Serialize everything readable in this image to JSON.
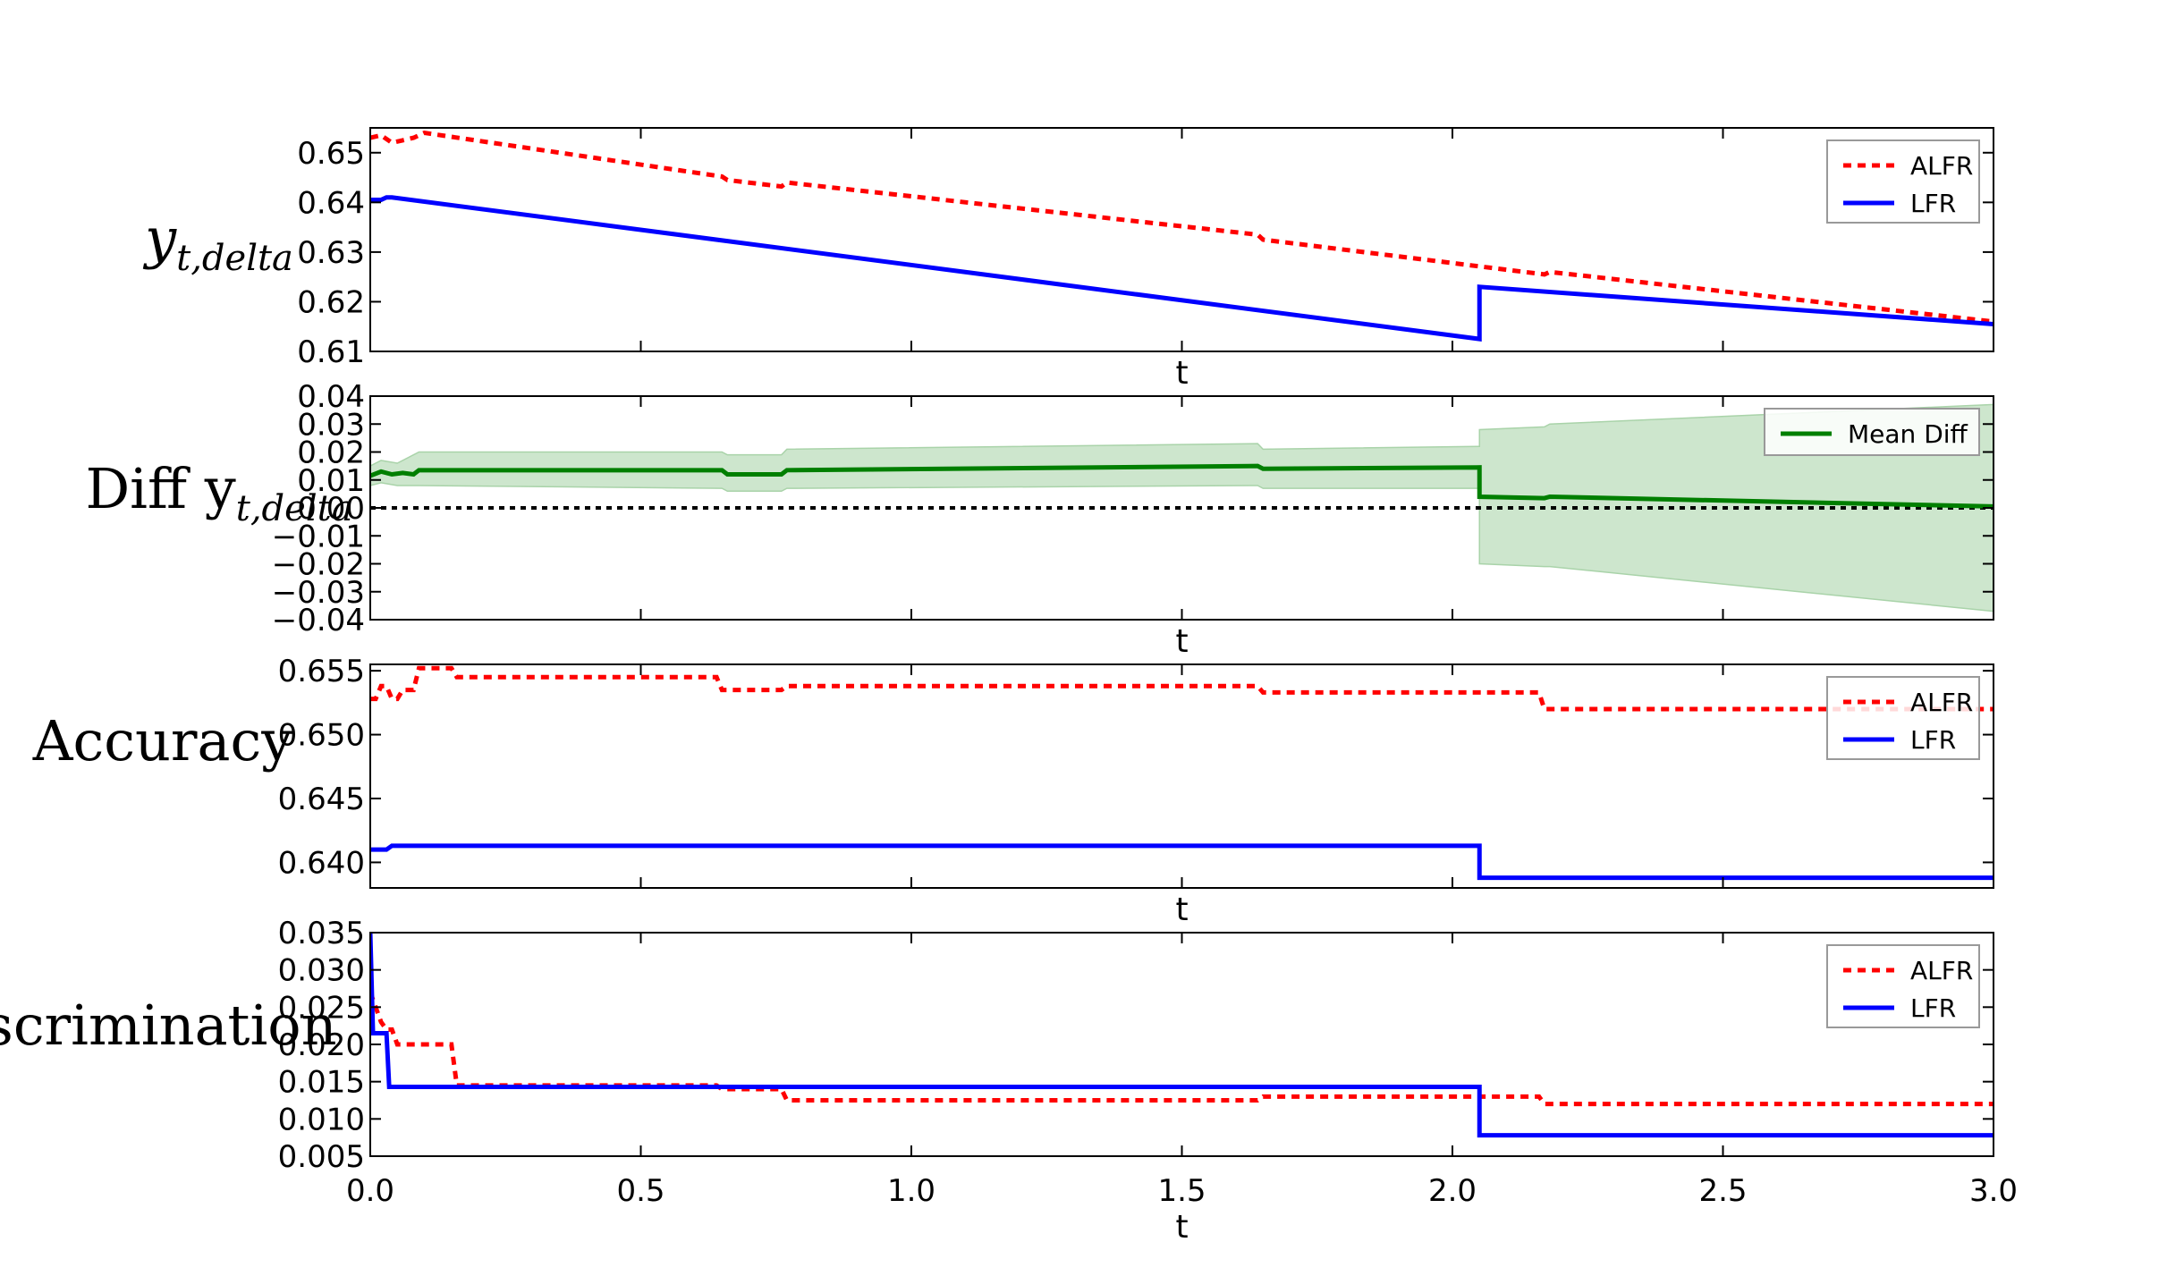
{
  "chart_data": [
    {
      "type": "line",
      "ylabel": "y",
      "ylabel_sub": "t,delta",
      "xlabel": "t",
      "xlim": [
        0,
        3
      ],
      "ylim": [
        0.61,
        0.655
      ],
      "yticks": [
        0.61,
        0.62,
        0.63,
        0.64,
        0.65
      ],
      "ytick_labels": [
        "0.61",
        "0.62",
        "0.63",
        "0.64",
        "0.65"
      ],
      "xticks": [
        0,
        0.5,
        1.0,
        1.5,
        2.0,
        2.5,
        3.0
      ],
      "legend_position": "top-right",
      "series": [
        {
          "name": "ALFR",
          "color": "#ff0000",
          "style": "dotted",
          "x": [
            0,
            0.02,
            0.04,
            0.06,
            0.08,
            0.1,
            0.65,
            0.66,
            0.76,
            0.77,
            1.64,
            1.65,
            2.17,
            2.18,
            3.0
          ],
          "y": [
            0.653,
            0.6535,
            0.652,
            0.6525,
            0.653,
            0.654,
            0.6452,
            0.6445,
            0.6432,
            0.644,
            0.6335,
            0.6325,
            0.6255,
            0.626,
            0.616
          ]
        },
        {
          "name": "LFR",
          "color": "#0000ff",
          "style": "solid",
          "x": [
            0,
            0.02,
            0.03,
            0.04,
            2.05,
            2.05,
            3.0
          ],
          "y": [
            0.6405,
            0.6405,
            0.641,
            0.641,
            0.6125,
            0.623,
            0.6155
          ]
        }
      ]
    },
    {
      "type": "line",
      "ylabel": "Diff y",
      "ylabel_sub": "t,delta",
      "xlabel": "t",
      "xlim": [
        0,
        3
      ],
      "ylim": [
        -0.04,
        0.04
      ],
      "yticks": [
        -0.04,
        -0.03,
        -0.02,
        -0.01,
        0.0,
        0.01,
        0.02,
        0.03,
        0.04
      ],
      "ytick_labels": [
        "−0.04",
        "−0.03",
        "−0.02",
        "−0.01",
        "0.00",
        "0.01",
        "0.02",
        "0.03",
        "0.04"
      ],
      "xticks": [
        0,
        0.5,
        1.0,
        1.5,
        2.0,
        2.5,
        3.0
      ],
      "legend_position": "top-right",
      "zero_line": {
        "y": 0,
        "color": "#000000",
        "style": "dotted"
      },
      "band": {
        "color": "#cde6cd",
        "x": [
          0,
          0.02,
          0.05,
          0.09,
          0.65,
          0.66,
          0.76,
          0.77,
          1.64,
          1.65,
          2.05,
          2.05,
          2.17,
          2.18,
          3.0
        ],
        "upper": [
          0.015,
          0.017,
          0.016,
          0.02,
          0.02,
          0.019,
          0.019,
          0.021,
          0.023,
          0.021,
          0.022,
          0.028,
          0.029,
          0.03,
          0.037
        ],
        "lower": [
          0.008,
          0.009,
          0.008,
          0.008,
          0.007,
          0.006,
          0.006,
          0.007,
          0.008,
          0.007,
          0.007,
          -0.02,
          -0.021,
          -0.021,
          -0.037
        ]
      },
      "series": [
        {
          "name": "Mean Diff",
          "color": "#007f00",
          "style": "solid",
          "x": [
            0,
            0.02,
            0.04,
            0.06,
            0.08,
            0.09,
            0.65,
            0.66,
            0.76,
            0.77,
            1.64,
            1.65,
            2.05,
            2.05,
            2.17,
            2.18,
            3.0
          ],
          "y": [
            0.0115,
            0.013,
            0.012,
            0.0125,
            0.012,
            0.0135,
            0.0135,
            0.012,
            0.012,
            0.0135,
            0.015,
            0.014,
            0.0145,
            0.004,
            0.0035,
            0.004,
            0.0005
          ]
        }
      ]
    },
    {
      "type": "line",
      "ylabel": "Accuracy",
      "xlabel": "t",
      "xlim": [
        0,
        3
      ],
      "ylim": [
        0.638,
        0.6555
      ],
      "yticks": [
        0.64,
        0.645,
        0.65,
        0.655
      ],
      "ytick_labels": [
        "0.640",
        "0.645",
        "0.650",
        "0.655"
      ],
      "xticks": [
        0,
        0.5,
        1.0,
        1.5,
        2.0,
        2.5,
        3.0
      ],
      "legend_position": "top-right",
      "series": [
        {
          "name": "ALFR",
          "color": "#ff0000",
          "style": "dotted",
          "x": [
            0,
            0.01,
            0.02,
            0.03,
            0.04,
            0.05,
            0.06,
            0.08,
            0.09,
            0.1,
            0.15,
            0.16,
            0.64,
            0.65,
            0.76,
            0.77,
            1.64,
            1.65,
            2.16,
            2.17,
            3.0
          ],
          "y": [
            0.6528,
            0.6528,
            0.6538,
            0.6538,
            0.6528,
            0.6528,
            0.6535,
            0.6535,
            0.6552,
            0.6552,
            0.6552,
            0.6545,
            0.6545,
            0.6535,
            0.6535,
            0.6538,
            0.6538,
            0.6533,
            0.6533,
            0.652,
            0.652
          ]
        },
        {
          "name": "LFR",
          "color": "#0000ff",
          "style": "solid",
          "x": [
            0,
            0.03,
            0.04,
            2.05,
            2.05,
            3.0
          ],
          "y": [
            0.641,
            0.641,
            0.6413,
            0.6413,
            0.6388,
            0.6388
          ]
        }
      ]
    },
    {
      "type": "line",
      "ylabel": "Discrimination",
      "xlabel": "t",
      "xlim": [
        0,
        3
      ],
      "ylim": [
        0.005,
        0.035
      ],
      "yticks": [
        0.005,
        0.01,
        0.015,
        0.02,
        0.025,
        0.03,
        0.035
      ],
      "ytick_labels": [
        "0.005",
        "0.010",
        "0.015",
        "0.020",
        "0.025",
        "0.030",
        "0.035"
      ],
      "xticks": [
        0,
        0.5,
        1.0,
        1.5,
        2.0,
        2.5,
        3.0
      ],
      "xtick_labels": [
        "0.0",
        "0.5",
        "1.0",
        "1.5",
        "2.0",
        "2.5",
        "3.0"
      ],
      "legend_position": "top-right",
      "series": [
        {
          "name": "ALFR",
          "color": "#ff0000",
          "style": "dotted",
          "x": [
            0,
            0.01,
            0.02,
            0.03,
            0.04,
            0.05,
            0.06,
            0.15,
            0.16,
            0.64,
            0.65,
            0.76,
            0.77,
            1.64,
            1.65,
            2.16,
            2.17,
            3.0
          ],
          "y": [
            0.027,
            0.025,
            0.023,
            0.022,
            0.022,
            0.02,
            0.02,
            0.02,
            0.0145,
            0.0145,
            0.014,
            0.014,
            0.0125,
            0.0125,
            0.013,
            0.013,
            0.012,
            0.012
          ]
        },
        {
          "name": "LFR",
          "color": "#0000ff",
          "style": "solid",
          "x": [
            0,
            0.005,
            0.03,
            0.035,
            2.05,
            2.05,
            3.0
          ],
          "y": [
            0.035,
            0.0215,
            0.0215,
            0.0143,
            0.0143,
            0.0078,
            0.0078
          ]
        }
      ]
    }
  ]
}
